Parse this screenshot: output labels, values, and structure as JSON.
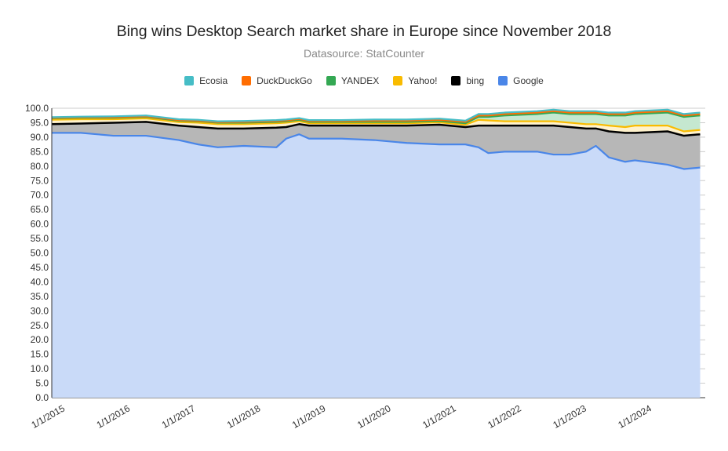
{
  "title": "Bing wins Desktop Search market share in Europe since November 2018",
  "subtitle": "Datasource: StatCounter",
  "chart_data": {
    "type": "area",
    "stacked": true,
    "title": "Bing wins Desktop Search market share in Europe since November 2018",
    "subtitle": "Datasource: StatCounter",
    "xlabel": "",
    "ylabel": "",
    "ylim": [
      0,
      100
    ],
    "yticks": [
      0.0,
      5.0,
      10.0,
      15.0,
      20.0,
      25.0,
      30.0,
      35.0,
      40.0,
      45.0,
      50.0,
      55.0,
      60.0,
      65.0,
      70.0,
      75.0,
      80.0,
      85.0,
      90.0,
      95.0,
      100.0
    ],
    "ytick_labels": [
      "0.0",
      "5.0",
      "10.0",
      "15.0",
      "20.0",
      "25.0",
      "30.0",
      "35.0",
      "40.0",
      "45.0",
      "50.0",
      "55.0",
      "60.0",
      "65.0",
      "70.0",
      "75.0",
      "80.0",
      "85.0",
      "90.0",
      "95.0",
      "100.0"
    ],
    "x_range": [
      2015.0,
      2025.0
    ],
    "xticks": [
      2015,
      2016,
      2017,
      2018,
      2019,
      2020,
      2021,
      2022,
      2023,
      2024
    ],
    "xtick_labels": [
      "1/1/2015",
      "1/1/2016",
      "1/1/2017",
      "1/1/2018",
      "1/1/2019",
      "1/1/2020",
      "1/1/2021",
      "1/1/2022",
      "1/1/2023",
      "1/1/2024"
    ],
    "grid": true,
    "legend_position": "top",
    "legend": [
      "Ecosia",
      "DuckDuckGo",
      "YANDEX",
      "Yahoo!",
      "bing",
      "Google"
    ],
    "x": [
      2015.0,
      2015.5,
      2016.0,
      2016.5,
      2017.0,
      2017.3,
      2017.6,
      2018.0,
      2018.5,
      2018.65,
      2018.85,
      2019.0,
      2019.5,
      2020.0,
      2020.5,
      2021.0,
      2021.4,
      2021.6,
      2021.75,
      2022.0,
      2022.5,
      2022.75,
      2023.0,
      2023.25,
      2023.4,
      2023.6,
      2023.85,
      2024.0,
      2024.5,
      2024.75,
      2025.0
    ],
    "series": [
      {
        "name": "Google",
        "color": "#4a86e8",
        "values": [
          91.5,
          91.5,
          90.5,
          90.5,
          89.0,
          87.5,
          86.5,
          87.0,
          86.5,
          89.5,
          91.0,
          89.5,
          89.5,
          89.0,
          88.0,
          87.5,
          87.5,
          86.5,
          84.5,
          85.0,
          85.0,
          84.0,
          84.0,
          85.0,
          87.0,
          83.0,
          81.5,
          82.0,
          80.5,
          79.0,
          79.5
        ]
      },
      {
        "name": "bing",
        "color": "#000000",
        "values": [
          3.0,
          3.2,
          4.5,
          4.8,
          5.0,
          6.0,
          6.5,
          6.0,
          6.8,
          4.0,
          3.5,
          4.5,
          4.5,
          5.0,
          6.0,
          6.8,
          6.0,
          7.5,
          9.5,
          9.0,
          9.0,
          10.0,
          9.5,
          8.0,
          6.0,
          9.0,
          10.0,
          9.5,
          11.5,
          11.5,
          11.5
        ]
      },
      {
        "name": "Yahoo!",
        "color": "#f9bb00",
        "values": [
          1.5,
          1.5,
          1.2,
          1.2,
          1.2,
          1.5,
          1.5,
          1.5,
          1.5,
          1.5,
          1.0,
          0.8,
          0.8,
          0.8,
          0.8,
          0.8,
          0.8,
          2.0,
          1.8,
          1.5,
          1.5,
          1.5,
          1.5,
          1.5,
          1.5,
          2.0,
          2.0,
          2.5,
          2.0,
          1.5,
          1.5
        ]
      },
      {
        "name": "YANDEX",
        "color": "#34a853",
        "values": [
          0.5,
          0.5,
          0.5,
          0.5,
          0.5,
          0.5,
          0.5,
          0.5,
          0.5,
          0.5,
          0.5,
          0.5,
          0.5,
          0.5,
          0.5,
          0.5,
          0.5,
          1.0,
          1.2,
          2.0,
          2.5,
          3.0,
          3.0,
          3.5,
          3.5,
          3.5,
          4.0,
          4.0,
          4.5,
          5.0,
          5.0
        ]
      },
      {
        "name": "DuckDuckGo",
        "color": "#ff6d01",
        "values": [
          0.2,
          0.2,
          0.2,
          0.2,
          0.2,
          0.2,
          0.2,
          0.3,
          0.3,
          0.3,
          0.3,
          0.3,
          0.3,
          0.4,
          0.4,
          0.4,
          0.5,
          0.5,
          0.5,
          0.5,
          0.5,
          0.5,
          0.5,
          0.5,
          0.5,
          0.5,
          0.5,
          0.5,
          0.5,
          0.5,
          0.5
        ]
      },
      {
        "name": "Ecosia",
        "color": "#46bdc6",
        "values": [
          0.2,
          0.2,
          0.3,
          0.3,
          0.3,
          0.3,
          0.3,
          0.3,
          0.3,
          0.3,
          0.3,
          0.3,
          0.3,
          0.4,
          0.4,
          0.4,
          0.4,
          0.5,
          0.5,
          0.5,
          0.5,
          0.5,
          0.5,
          0.5,
          0.5,
          0.5,
          0.5,
          0.5,
          0.5,
          0.5,
          0.5
        ]
      }
    ]
  }
}
